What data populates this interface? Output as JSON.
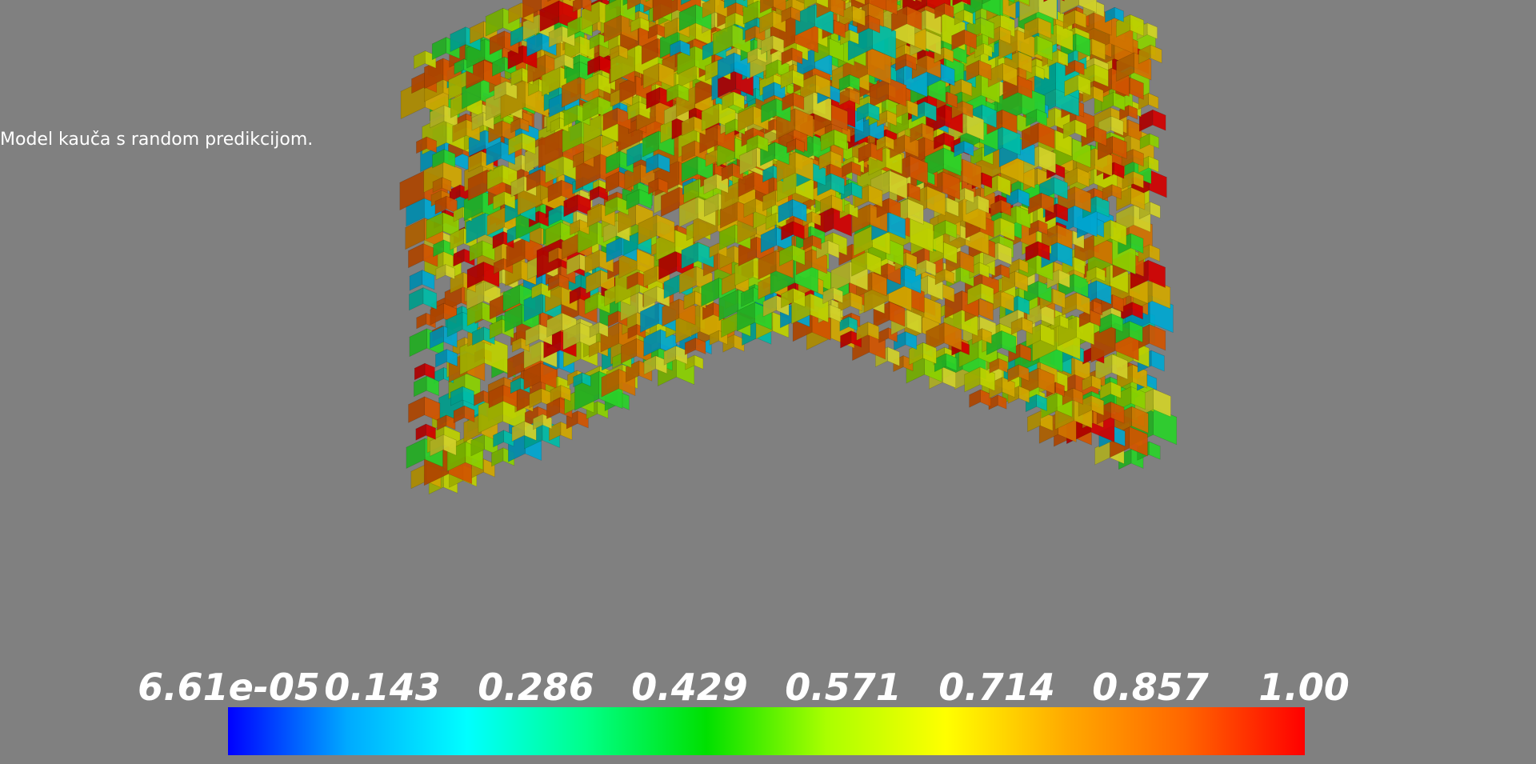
{
  "caption": "Model kauča s random predikcijom.",
  "colorbar": {
    "title": "",
    "range": [
      6.61e-05,
      1.0
    ],
    "ticks": [
      "6.61e-05",
      "0.143",
      "0.286",
      "0.429",
      "0.571",
      "0.714",
      "0.857",
      "1.00"
    ],
    "colormap": "jet",
    "colors": [
      "#0000ff",
      "#00aaff",
      "#00ffff",
      "#00ff88",
      "#00e000",
      "#aaff00",
      "#ffff00",
      "#ffaa00",
      "#ff6600",
      "#ff0000"
    ]
  },
  "scene": {
    "object": "voxel-cube",
    "background": "#808080",
    "voxel_colors": [
      "#ff0000",
      "#ff6600",
      "#ff8c00",
      "#ffcc00",
      "#e8ff00",
      "#ffff33",
      "#aaff00",
      "#33ff33",
      "#00e5cc",
      "#00ccff"
    ]
  }
}
